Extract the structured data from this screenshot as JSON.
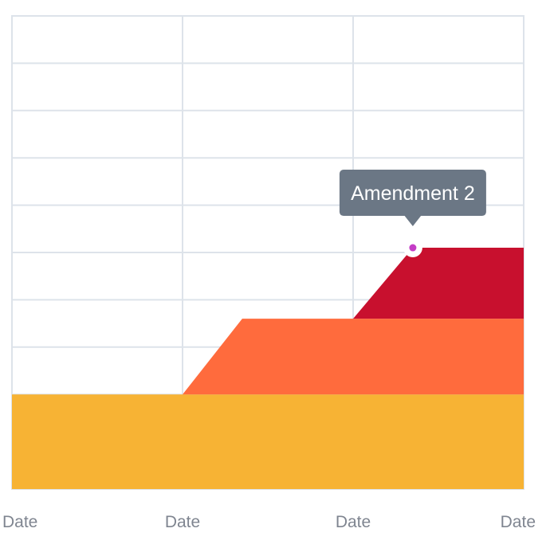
{
  "chart_data": {
    "type": "area",
    "stacked": true,
    "x": [
      "Date",
      "Date",
      "Date",
      "Date"
    ],
    "grid": true,
    "legend": "none",
    "ylim": [
      0,
      10
    ],
    "series": [
      {
        "color": "#f7b334",
        "values": [
          2,
          2,
          2,
          2
        ]
      },
      {
        "color": "#ff6b3d",
        "step_at": 1.35,
        "values": [
          0,
          0,
          1.6,
          1.6
        ]
      },
      {
        "color": "#c8102e",
        "step_at": 2.35,
        "values": [
          0,
          0,
          0,
          1.5
        ]
      }
    ],
    "tooltip": {
      "text": "Amendment 2",
      "x": 2.35,
      "y": 5.1,
      "background": "#6b7785",
      "marker_color": "#c43dc6"
    }
  }
}
